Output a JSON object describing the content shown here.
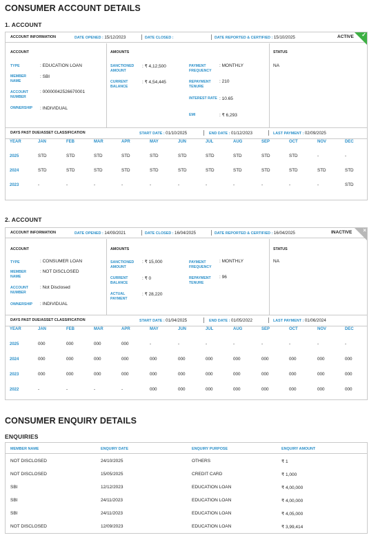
{
  "sections": {
    "accounts_title": "CONSUMER ACCOUNT DETAILS",
    "enquiry_title": "CONSUMER ENQUIRY DETAILS",
    "enquiries_sub": "ENQUIRIES"
  },
  "labels": {
    "account_information": "ACCOUNT INFORMATION",
    "date_opened": "DATE OPENED :",
    "date_closed": "DATE CLOSED :",
    "date_reported": "DATE REPORTED & CERTIFIED :",
    "account": "ACCOUNT",
    "amounts": "AMOUNTS",
    "status": "STATUS",
    "type": "TYPE",
    "member_name": "MEMBER NAME",
    "account_number": "ACCOUNT NUMBER",
    "ownership": "OWNERSHIP",
    "sanctioned_amount": "SANCTIONED AMOUNT",
    "current_balance": "CURRENT BALANCE",
    "actual_payment": "ACTUAL PAYMENT",
    "payment_frequency": "PAYMENT FREQUENCY",
    "repayment_tenure": "REPAYMENT TENURE",
    "interest_rate": "INTEREST RATE",
    "emi": "EMI",
    "dpd_title": "DAYS PAST DUE/ASSET CLASSIFICATION",
    "start_date": "START DATE :",
    "end_date": "END DATE :",
    "last_payment": "LAST PAYMENT :",
    "year": "YEAR",
    "months": [
      "JAN",
      "FEB",
      "MAR",
      "APR",
      "MAY",
      "JUN",
      "JUL",
      "AUG",
      "SEP",
      "OCT",
      "NOV",
      "DEC"
    ]
  },
  "accounts": [
    {
      "heading": "1. ACCOUNT",
      "date_opened": "15/12/2023",
      "date_closed": "",
      "date_reported": "15/10/2025",
      "status_flag": "ACTIVE",
      "status_color": "#3cb043",
      "corner_symbol": "✓",
      "type": ": EDUCATION LOAN",
      "member_name": ": SBI",
      "account_number": ": 00000042526670001",
      "ownership": ": INDIVIDUAL",
      "sanctioned_amount": ": ₹ 4,12,500",
      "current_balance": ": ₹ 4,54,445",
      "payment_frequency": ": MONTHLY",
      "repayment_tenure": ": 210",
      "interest_rate": ": 10.65",
      "emi": ": ₹ 6,293",
      "status_value": "NA",
      "dpd_start": "01/10/2025",
      "dpd_end": "01/12/2023",
      "dpd_last_payment": "02/09/2025",
      "dpd_rows": [
        {
          "year": "2025",
          "cells": [
            "STD",
            "STD",
            "STD",
            "STD",
            "STD",
            "STD",
            "STD",
            "STD",
            "STD",
            "STD",
            "-",
            "-"
          ]
        },
        {
          "year": "2024",
          "cells": [
            "STD",
            "STD",
            "STD",
            "STD",
            "STD",
            "STD",
            "STD",
            "STD",
            "STD",
            "STD",
            "STD",
            "STD"
          ]
        },
        {
          "year": "2023",
          "cells": [
            "-",
            "-",
            "-",
            "-",
            "-",
            "-",
            "-",
            "-",
            "-",
            "-",
            "-",
            "STD"
          ]
        }
      ]
    },
    {
      "heading": "2. ACCOUNT",
      "date_opened": "14/09/2021",
      "date_closed": "16/04/2025",
      "date_reported": "16/04/2025",
      "status_flag": "INACTIVE",
      "status_color": "#b8b8b8",
      "corner_symbol": "×",
      "type": ": CONSUMER LOAN",
      "member_name": ": NOT DISCLOSED",
      "account_number": ": Not Disclosed",
      "ownership": ": INDIVIDUAL",
      "sanctioned_amount": ": ₹ 15,000",
      "current_balance": ": ₹ 0",
      "actual_payment": ": ₹ 28,220",
      "payment_frequency": ": MONTHLY",
      "repayment_tenure": ": 96",
      "status_value": "NA",
      "dpd_start": "01/04/2025",
      "dpd_end": "01/05/2022",
      "dpd_last_payment": "01/06/2024",
      "dpd_rows": [
        {
          "year": "2025",
          "cells": [
            "000",
            "000",
            "000",
            "000",
            "-",
            "-",
            "-",
            "-",
            "-",
            "-",
            "-",
            "-"
          ]
        },
        {
          "year": "2024",
          "cells": [
            "000",
            "000",
            "000",
            "000",
            "000",
            "000",
            "000",
            "000",
            "000",
            "000",
            "000",
            "000"
          ]
        },
        {
          "year": "2023",
          "cells": [
            "000",
            "000",
            "000",
            "000",
            "000",
            "000",
            "000",
            "000",
            "000",
            "000",
            "000",
            "000"
          ]
        },
        {
          "year": "2022",
          "cells": [
            "-",
            "-",
            "-",
            "-",
            "000",
            "000",
            "000",
            "000",
            "000",
            "000",
            "000",
            "000"
          ]
        }
      ]
    }
  ],
  "enquiries": {
    "headers": [
      "MEMBER NAME",
      "ENQUIRY DATE",
      "ENQUIRY PURPOSE",
      "ENQUIRY AMOUNT"
    ],
    "rows": [
      [
        "NOT DISCLOSED",
        "24/10/2025",
        "OTHERS",
        "₹ 1"
      ],
      [
        "NOT DISCLOSED",
        "15/05/2025",
        "CREDIT CARD",
        "₹ 1,000"
      ],
      [
        "SBI",
        "12/12/2023",
        "EDUCATION LOAN",
        "₹ 4,00,000"
      ],
      [
        "SBI",
        "24/11/2023",
        "EDUCATION LOAN",
        "₹ 4,00,000"
      ],
      [
        "SBI",
        "24/11/2023",
        "EDUCATION LOAN",
        "₹ 4,05,000"
      ],
      [
        "NOT DISCLOSED",
        "12/09/2023",
        "EDUCATION LOAN",
        "₹ 3,99,414"
      ]
    ]
  }
}
